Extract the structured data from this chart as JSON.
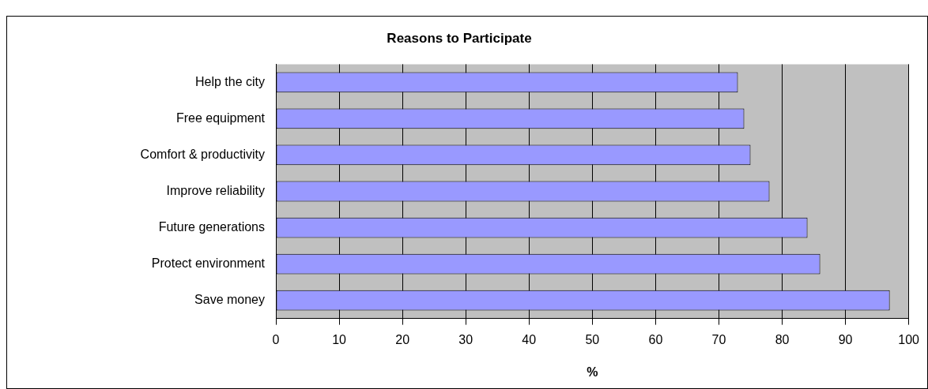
{
  "chart_data": {
    "type": "bar",
    "orientation": "horizontal",
    "title": "Reasons to Participate",
    "xlabel": "%",
    "categories": [
      "Help the city",
      "Free equipment",
      "Comfort & productivity",
      "Improve reliability",
      "Future generations",
      "Protect environment",
      "Save money"
    ],
    "values": [
      73,
      74,
      75,
      78,
      84,
      86,
      97
    ],
    "color": "#9999ff",
    "xlim": [
      0,
      100
    ],
    "xticks": [
      0,
      10,
      20,
      30,
      40,
      50,
      60,
      70,
      80,
      90,
      100
    ],
    "grid": "x",
    "legend": false
  }
}
